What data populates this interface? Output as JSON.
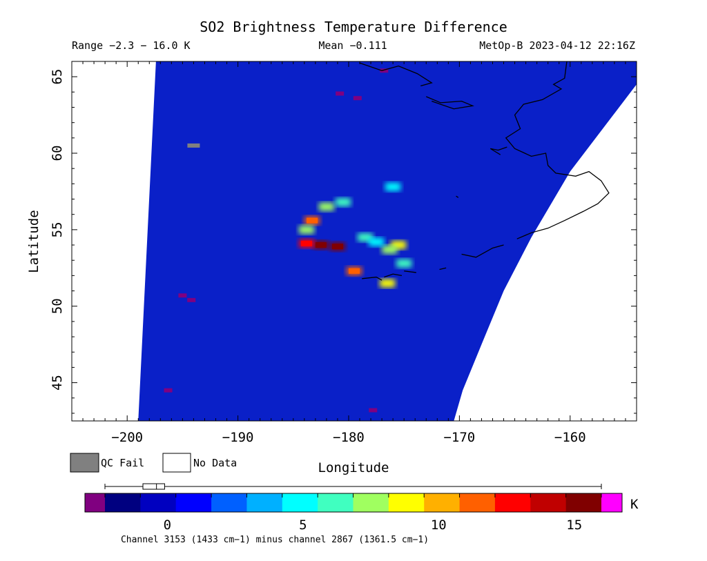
{
  "header": {
    "title": "SO2 Brightness Temperature Difference",
    "range": "Range −2.3 − 16.0 K",
    "mean": "Mean −0.111",
    "satellite": "MetOp-B 2023-04-12 22:16Z"
  },
  "legend": {
    "qc_fail": "QC Fail",
    "no_data": "No Data",
    "qc_fail_color": "#808080",
    "no_data_color": "#ffffff"
  },
  "colorbar": {
    "unit": "K",
    "footer": "Channel 3153 (1433 cm−1) minus channel 2867 (1361.5 cm−1)",
    "min": -2.3,
    "max": 16.0,
    "ticks": [
      {
        "value": 0,
        "label": "0"
      },
      {
        "value": 5,
        "label": "5"
      },
      {
        "value": 10,
        "label": "10"
      },
      {
        "value": 15,
        "label": "15"
      }
    ],
    "under_color": "#800080",
    "over_color": "#ff00ff",
    "colors": [
      "#000080",
      "#0000c0",
      "#0000ff",
      "#0060ff",
      "#00b0ff",
      "#00ffff",
      "#40ffc0",
      "#a0ff60",
      "#ffff00",
      "#ffb000",
      "#ff6000",
      "#ff0000",
      "#c00000",
      "#800000"
    ],
    "boxplot": {
      "min": -2.3,
      "q1": -0.9,
      "median": -0.4,
      "q3": -0.1,
      "max": 16.0
    }
  },
  "chart_data": {
    "type": "heatmap",
    "title": "SO2 Brightness Temperature Difference",
    "xlabel": "Longitude",
    "ylabel": "Latitude",
    "xlim": [
      -205,
      -154
    ],
    "ylim": [
      42.5,
      66
    ],
    "xticks": [
      {
        "value": -200,
        "label": "−200"
      },
      {
        "value": -190,
        "label": "−190"
      },
      {
        "value": -180,
        "label": "−180"
      },
      {
        "value": -170,
        "label": "−170"
      },
      {
        "value": -160,
        "label": "−160"
      }
    ],
    "yticks": [
      {
        "value": 45,
        "label": "45"
      },
      {
        "value": 50,
        "label": "50"
      },
      {
        "value": 55,
        "label": "55"
      },
      {
        "value": 60,
        "label": "60"
      },
      {
        "value": 65,
        "label": "65"
      }
    ],
    "colorbar_unit": "K",
    "background_color": "#0a20c8",
    "swath_edges": {
      "west": [
        [
          -197.4,
          66
        ],
        [
          -199.0,
          42.5
        ]
      ],
      "east_curve": [
        [
          -154,
          64.5
        ],
        [
          -160,
          58.8
        ],
        [
          -163.5,
          54.5
        ],
        [
          -166,
          51
        ],
        [
          -168,
          47.5
        ],
        [
          -169.7,
          44.5
        ],
        [
          -170.5,
          42.5
        ]
      ]
    },
    "so2_plume": [
      {
        "lon": -182.5,
        "lat": 54.0,
        "value": 16.0
      },
      {
        "lon": -181.0,
        "lat": 53.9,
        "value": 15.0
      },
      {
        "lon": -183.8,
        "lat": 54.1,
        "value": 13.0
      },
      {
        "lon": -179.5,
        "lat": 52.3,
        "value": 12.0
      },
      {
        "lon": -183.3,
        "lat": 55.6,
        "value": 12.0
      },
      {
        "lon": -183.8,
        "lat": 55.0,
        "value": 8.0
      },
      {
        "lon": -175.5,
        "lat": 54.0,
        "value": 9.0
      },
      {
        "lon": -176.3,
        "lat": 53.7,
        "value": 8.0
      },
      {
        "lon": -178.5,
        "lat": 54.5,
        "value": 6.0
      },
      {
        "lon": -177.5,
        "lat": 54.2,
        "value": 5.0
      },
      {
        "lon": -175.0,
        "lat": 52.8,
        "value": 6.0
      },
      {
        "lon": -176.5,
        "lat": 51.5,
        "value": 9.0
      },
      {
        "lon": -182.0,
        "lat": 56.5,
        "value": 7.0
      },
      {
        "lon": -180.5,
        "lat": 56.8,
        "value": 6.0
      },
      {
        "lon": -176.0,
        "lat": 57.8,
        "value": 5.0
      }
    ],
    "qc_fail_points": [
      {
        "lon": -194.0,
        "lat": 60.5
      }
    ],
    "low_value_points": [
      {
        "lon": -180.8,
        "lat": 63.9,
        "value": -2.3
      },
      {
        "lon": -179.2,
        "lat": 63.6,
        "value": -2.3
      },
      {
        "lon": -176.8,
        "lat": 65.4,
        "value": -2.3
      },
      {
        "lon": -195.0,
        "lat": 50.7,
        "value": -2.3
      },
      {
        "lon": -194.2,
        "lat": 50.4,
        "value": -2.3
      },
      {
        "lon": -196.3,
        "lat": 44.5,
        "value": -2.3
      },
      {
        "lon": -177.8,
        "lat": 43.2,
        "value": -2.3
      }
    ],
    "coastlines": [
      [
        [
          -160.3,
          66
        ],
        [
          -160.5,
          64.9
        ],
        [
          -161.5,
          64.5
        ],
        [
          -160.8,
          64.2
        ],
        [
          -162.5,
          63.5
        ],
        [
          -164.2,
          63.2
        ],
        [
          -165,
          62.5
        ],
        [
          -164.5,
          61.6
        ],
        [
          -165.8,
          61
        ],
        [
          -165,
          60.3
        ],
        [
          -163.5,
          59.8
        ],
        [
          -162.2,
          60
        ],
        [
          -162,
          59.2
        ],
        [
          -161.3,
          58.7
        ],
        [
          -159.5,
          58.5
        ],
        [
          -158.3,
          58.8
        ],
        [
          -157.2,
          58.2
        ],
        [
          -156.5,
          57.4
        ],
        [
          -157.5,
          56.7
        ],
        [
          -158.8,
          56.2
        ],
        [
          -160.5,
          55.6
        ],
        [
          -162.0,
          55.1
        ],
        [
          -163.5,
          54.8
        ],
        [
          -164.8,
          54.4
        ]
      ],
      [
        [
          -173.0,
          63.7
        ],
        [
          -171.7,
          63.3
        ],
        [
          -169.8,
          63.4
        ],
        [
          -168.8,
          63.1
        ],
        [
          -170.5,
          62.9
        ],
        [
          -172.5,
          63.4
        ]
      ],
      [
        [
          -179.0,
          65.9
        ],
        [
          -177.0,
          65.4
        ],
        [
          -175.5,
          65.7
        ],
        [
          -173.8,
          65.2
        ],
        [
          -172.5,
          64.6
        ],
        [
          -173.5,
          64.4
        ]
      ],
      [
        [
          -165.7,
          60.4
        ],
        [
          -166.5,
          60.2
        ],
        [
          -167.2,
          60.3
        ],
        [
          -166.3,
          59.9
        ]
      ],
      [
        [
          -170.3,
          57.2
        ],
        [
          -170.1,
          57.1
        ]
      ],
      [
        [
          -169.8,
          53.4
        ],
        [
          -168.5,
          53.2
        ],
        [
          -167,
          53.8
        ],
        [
          -166.0,
          54.0
        ]
      ],
      [
        [
          -171.8,
          52.4
        ],
        [
          -171.2,
          52.5
        ]
      ],
      [
        [
          -176.8,
          51.9
        ],
        [
          -176.0,
          52.1
        ],
        [
          -175.2,
          52.0
        ]
      ],
      [
        [
          -178.8,
          51.8
        ],
        [
          -177.5,
          51.9
        ],
        [
          -177.0,
          51.7
        ]
      ],
      [
        [
          -175.0,
          52.3
        ],
        [
          -173.9,
          52.2
        ]
      ]
    ]
  }
}
